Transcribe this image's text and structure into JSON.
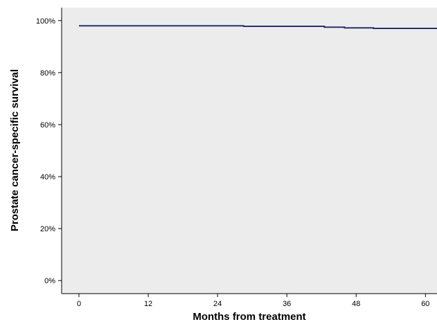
{
  "chart_data": {
    "type": "line",
    "xlabel": "Months from treatment",
    "ylabel": "Prostate cancer-specific survival",
    "xlim": [
      -3,
      62
    ],
    "ylim": [
      -5,
      105
    ],
    "x_ticks": [
      0,
      12,
      24,
      36,
      48,
      60
    ],
    "x_tick_labels": [
      "0",
      "12",
      "24",
      "36",
      "48",
      "60"
    ],
    "y_ticks": [
      0,
      20,
      40,
      60,
      80,
      100
    ],
    "y_tick_labels": [
      "0%",
      "20%",
      "40%",
      "60%",
      "80%",
      "100%"
    ],
    "grid": false,
    "legend": "none",
    "step": true,
    "series": [
      {
        "color": "#2b2e6e",
        "x": [
          0,
          28.5,
          42.5,
          46,
          51,
          62
        ],
        "y": [
          98.0,
          97.8,
          97.5,
          97.2,
          97.0,
          97.0
        ]
      }
    ]
  },
  "colors": {
    "plot_background": "#ececec",
    "axis": "#000000",
    "line": "#2b2e6e"
  }
}
